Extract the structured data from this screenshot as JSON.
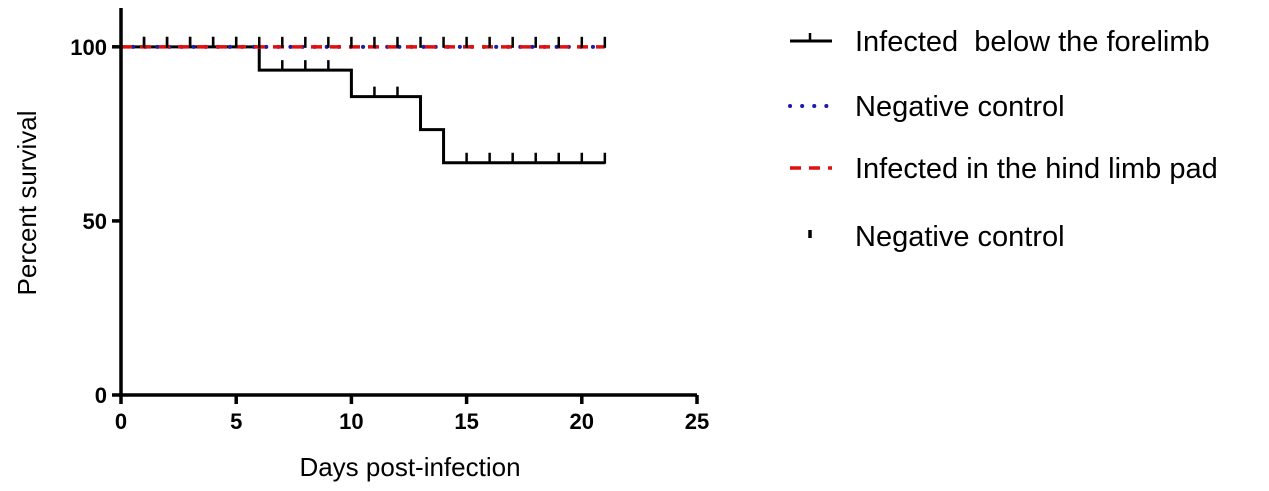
{
  "chart_data": {
    "type": "line",
    "subtype": "kaplan-meier step",
    "xlabel": "Days post-infection",
    "ylabel": "Percent survival",
    "xlim": [
      0,
      25
    ],
    "ylim": [
      0,
      110
    ],
    "xticks": [
      0,
      5,
      10,
      15,
      20,
      25
    ],
    "yticks": [
      0,
      50,
      100
    ],
    "grid": false,
    "legend_position": "right",
    "series": [
      {
        "name": "Infected  below the forelimb",
        "style": "solid",
        "color": "#000000",
        "x": [
          0,
          6,
          6,
          10,
          10,
          13,
          13,
          14,
          14,
          21
        ],
        "y": [
          100,
          100,
          93.3,
          93.3,
          85.7,
          85.7,
          76.2,
          76.2,
          66.7,
          66.7
        ],
        "censored_x": [
          1,
          2,
          3,
          4,
          5,
          7,
          8,
          9,
          11,
          12,
          15,
          16,
          17,
          18,
          19,
          20,
          21
        ]
      },
      {
        "name": "Negative control",
        "style": "dotted",
        "color": "#1c1ca8",
        "x": [
          0,
          21
        ],
        "y": [
          100,
          100
        ],
        "censored_x": []
      },
      {
        "name": "Infected in the hind limb pad",
        "style": "dashed",
        "color": "#e01010",
        "x": [
          0,
          21
        ],
        "y": [
          100,
          100
        ],
        "censored_x": []
      },
      {
        "name": "Negative control",
        "style": "censor-ticks",
        "color": "#000000",
        "x": [],
        "y": [],
        "censored_x": [
          1,
          2,
          3,
          4,
          5,
          6,
          7,
          8,
          9,
          10,
          11,
          12,
          13,
          14,
          15,
          16,
          17,
          18,
          19,
          20,
          21
        ],
        "censored_y": 100
      }
    ]
  }
}
